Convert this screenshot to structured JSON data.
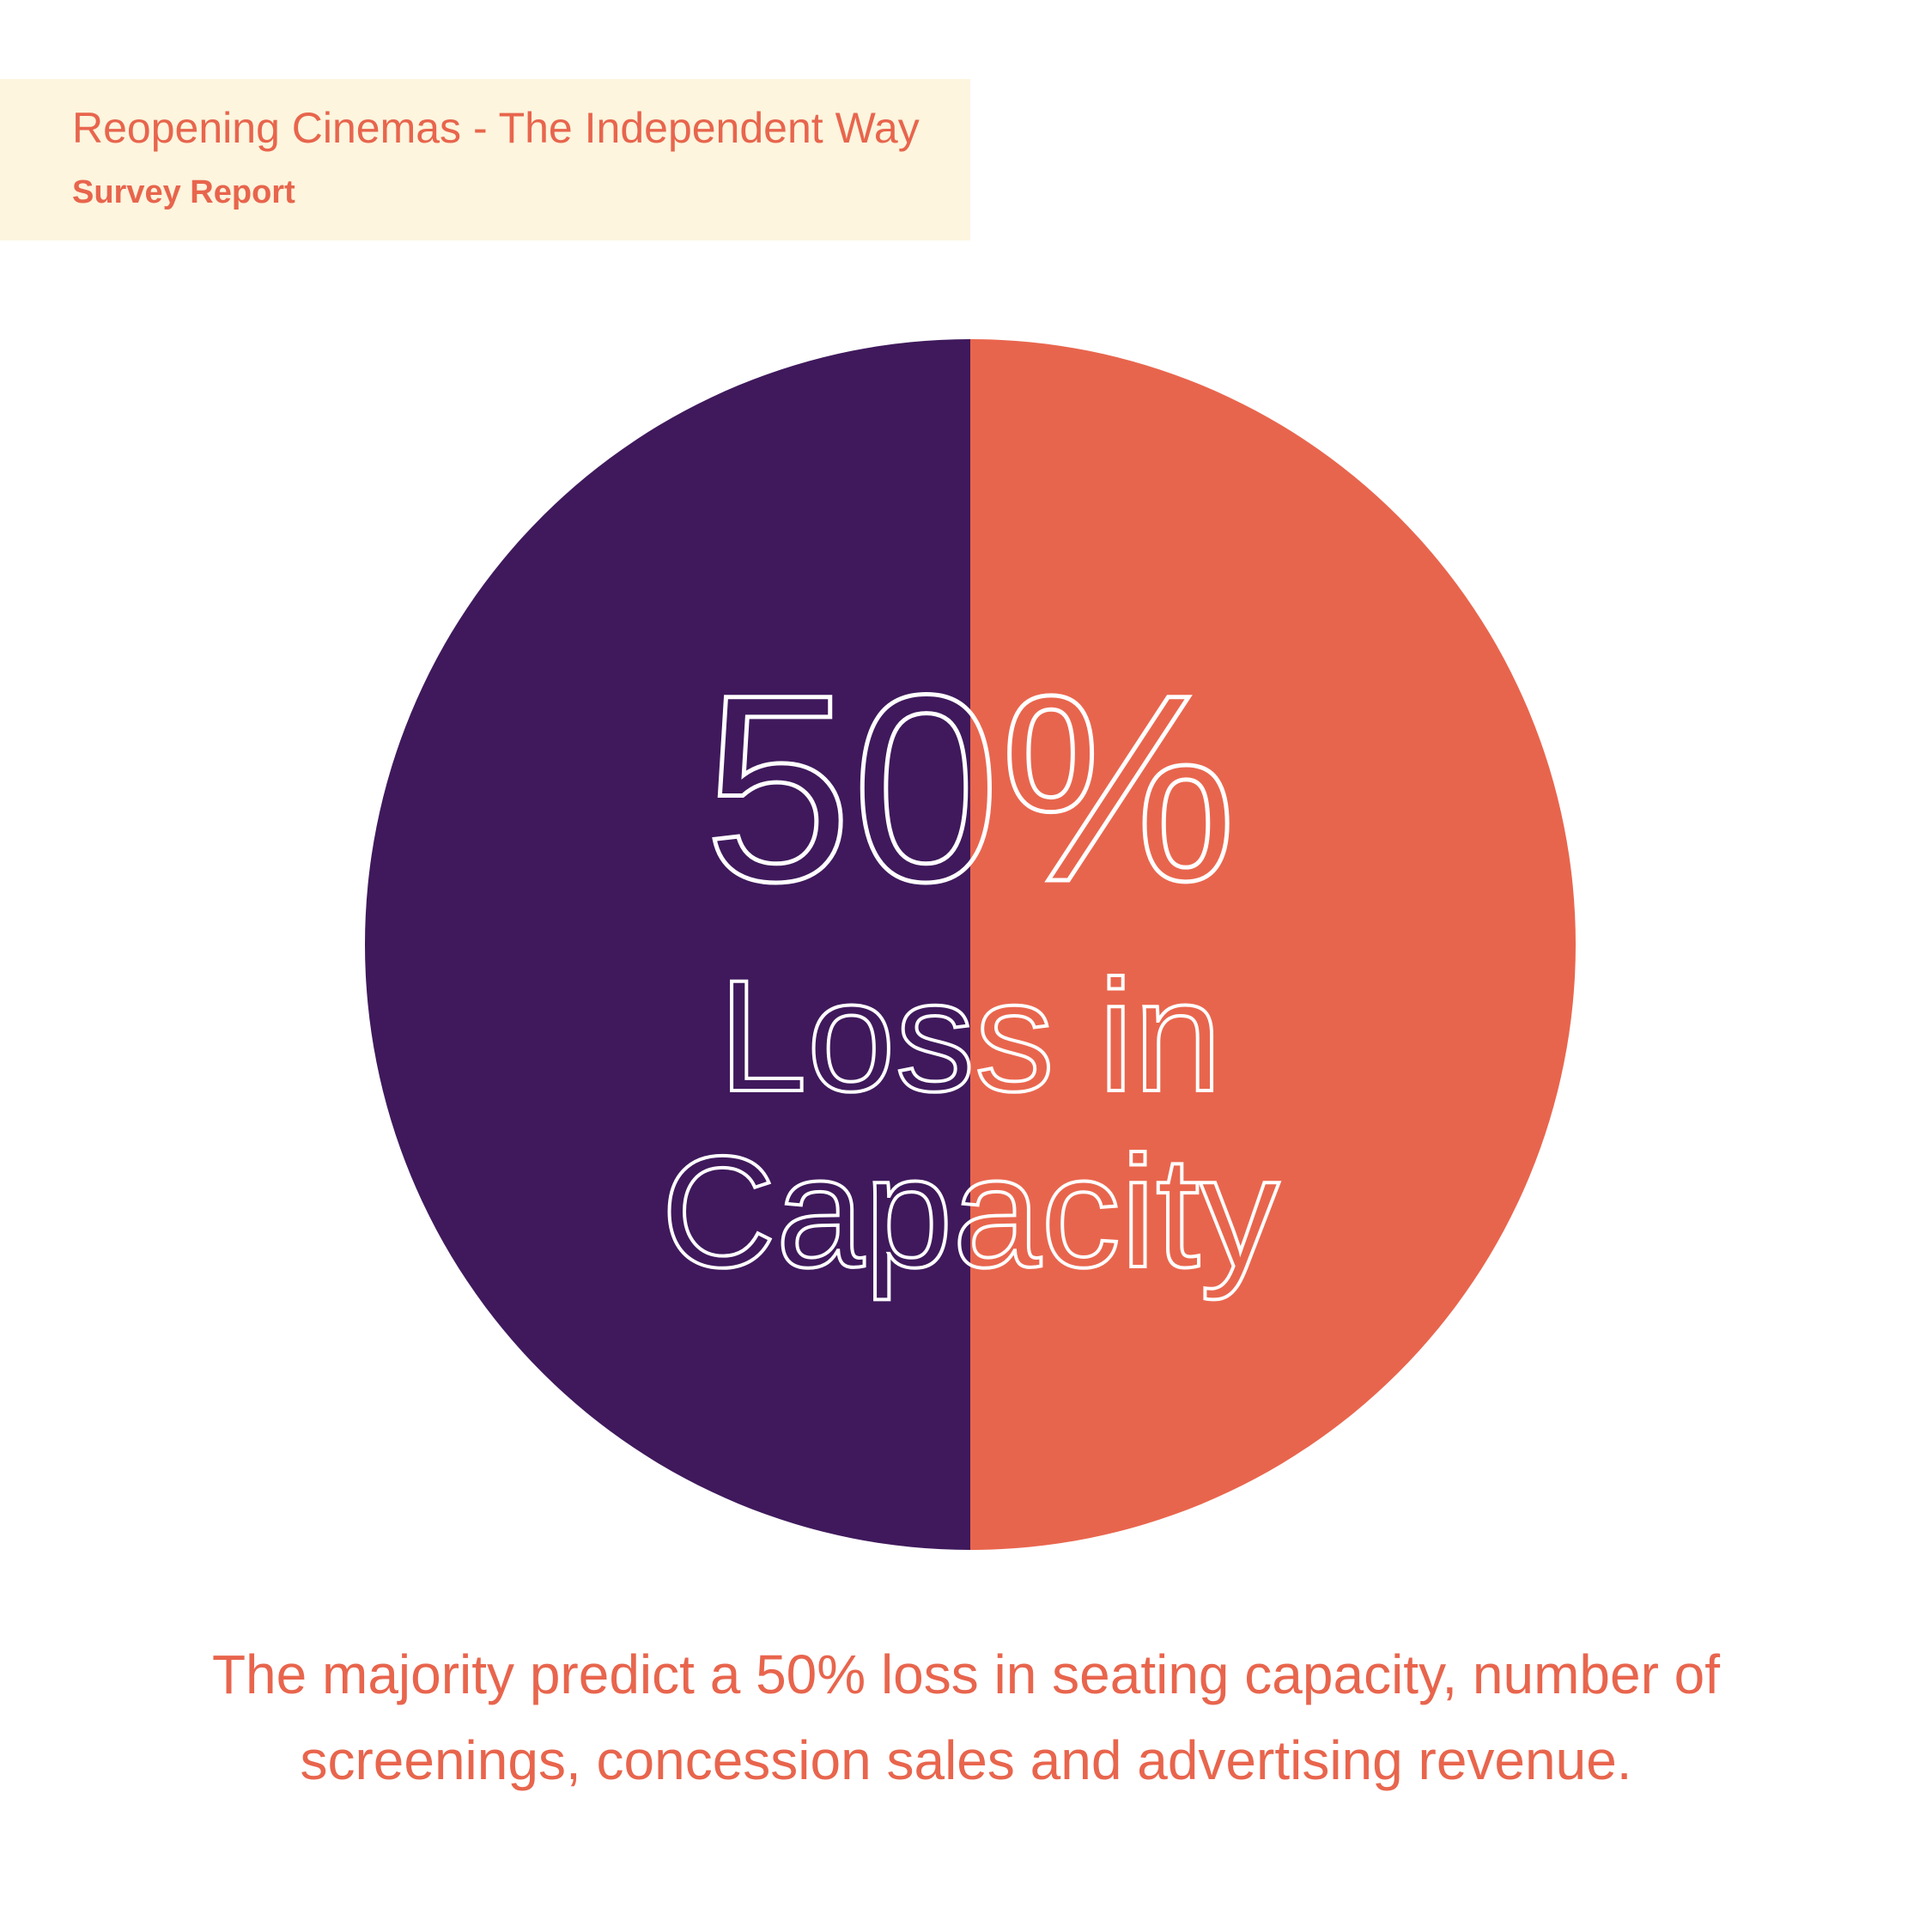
{
  "header": {
    "title": "Reopening Cinemas - The Independent Way",
    "subtitle": "Survey Report"
  },
  "colors": {
    "header_background": "#fdf5de",
    "accent": "#e8654d",
    "purple": "#3f195c",
    "text_on_chart": "#ffffff"
  },
  "chart_data": {
    "type": "pie",
    "slices": [
      {
        "label": "",
        "value": 50,
        "color": "#3f195c"
      },
      {
        "label": "",
        "value": 50,
        "color": "#e8654d"
      }
    ],
    "center_value": "50%",
    "center_label_line1": "Loss in",
    "center_label_line2": "Capacity"
  },
  "caption": "The majority predict a 50% loss in seating capacity, number of screenings, concession sales and advertising revenue."
}
